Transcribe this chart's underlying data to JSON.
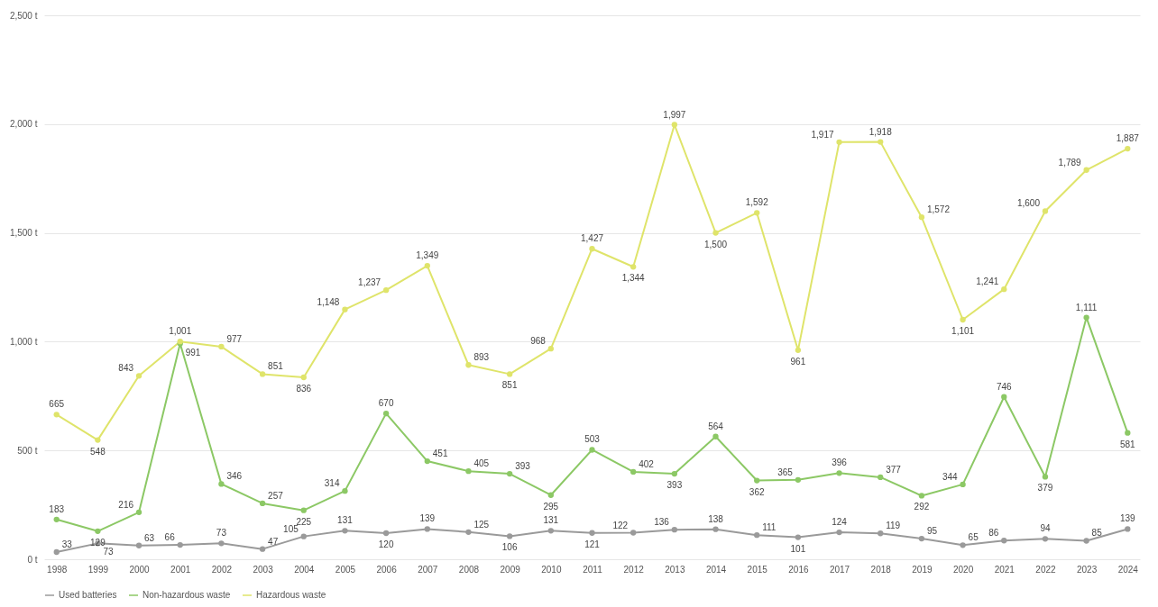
{
  "chart_data": {
    "type": "line",
    "categories": [
      "1998",
      "1999",
      "2000",
      "2001",
      "2002",
      "2003",
      "2004",
      "2005",
      "2006",
      "2007",
      "2008",
      "2009",
      "2010",
      "2011",
      "2012",
      "2013",
      "2014",
      "2015",
      "2016",
      "2017",
      "2018",
      "2019",
      "2020",
      "2021",
      "2022",
      "2023",
      "2024"
    ],
    "series": [
      {
        "name": "Used batteries",
        "color": "#9a9a9a",
        "values": [
          33,
          73,
          63,
          66,
          73,
          47,
          105,
          131,
          120,
          139,
          125,
          106,
          131,
          121,
          122,
          136,
          138,
          111,
          101,
          124,
          119,
          95,
          65,
          86,
          94,
          85,
          139
        ],
        "value_labels": [
          "33",
          "73",
          "63",
          "66",
          "73",
          "47",
          "105",
          "131",
          "120",
          "139",
          "125",
          "106",
          "131",
          "121",
          "122",
          "136",
          "138",
          "111",
          "101",
          "124",
          "119",
          "95",
          "65",
          "86",
          "94",
          "85",
          "139"
        ]
      },
      {
        "name": "Non-hazardous waste",
        "color": "#8cc865",
        "values": [
          183,
          129,
          216,
          991,
          346,
          257,
          225,
          314,
          670,
          451,
          405,
          393,
          295,
          503,
          402,
          393,
          564,
          362,
          365,
          396,
          377,
          292,
          344,
          746,
          379,
          1111,
          581
        ],
        "value_labels": [
          "183",
          "129",
          "216",
          "991",
          "346",
          "257",
          "225",
          "314",
          "670",
          "451",
          "405",
          "393",
          "295",
          "503",
          "402",
          "393",
          "564",
          "362",
          "365",
          "396",
          "377",
          "292",
          "344",
          "746",
          "379",
          "1,111",
          "581"
        ]
      },
      {
        "name": "Hazardous waste",
        "color": "#dfe46a",
        "values": [
          665,
          548,
          843,
          1001,
          977,
          851,
          836,
          1148,
          1237,
          1349,
          893,
          851,
          968,
          1427,
          1344,
          1997,
          1500,
          1592,
          961,
          1917,
          1918,
          1572,
          1101,
          1241,
          1600,
          1789,
          1887
        ],
        "value_labels": [
          "665",
          "548",
          "843",
          "1,001",
          "977",
          "851",
          "836",
          "1,148",
          "1,237",
          "1,349",
          "893",
          "851",
          "968",
          "1,427",
          "1,344",
          "1,997",
          "1,500",
          "1,592",
          "961",
          "1,917",
          "1,918",
          "1,572",
          "1,101",
          "1,241",
          "1,600",
          "1,789",
          "1,887"
        ]
      }
    ],
    "ylim": [
      0,
      2500
    ],
    "yticks": [
      {
        "value": 0,
        "label": "0 t"
      },
      {
        "value": 500,
        "label": "500 t"
      },
      {
        "value": 1000,
        "label": "1,000 t"
      },
      {
        "value": 1500,
        "label": "1,500 t"
      },
      {
        "value": 2000,
        "label": "2,000 t"
      },
      {
        "value": 2500,
        "label": "2,500 t"
      }
    ],
    "grid": "y",
    "legend": "bottom",
    "marker": "circle",
    "line_style": "solid"
  }
}
